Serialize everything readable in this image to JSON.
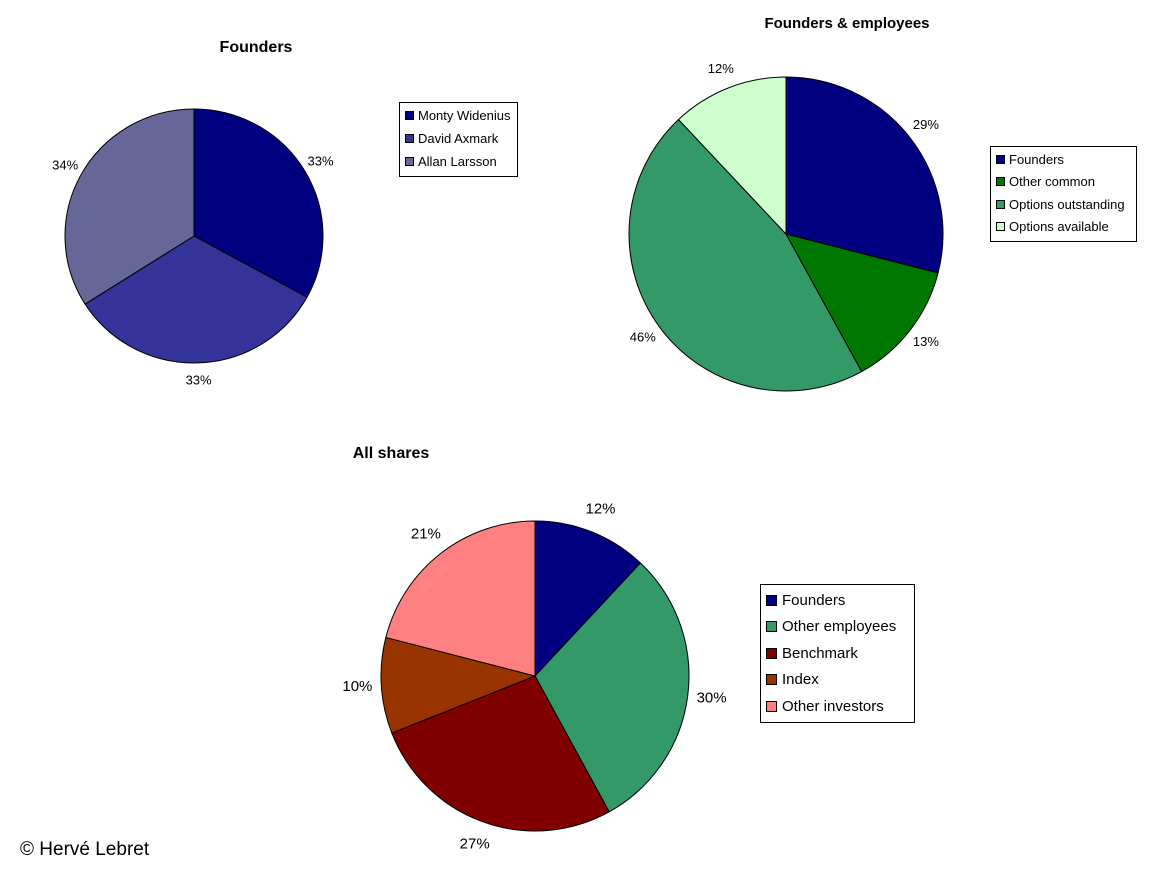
{
  "chart_data": [
    {
      "type": "pie",
      "title": "Founders",
      "start_angle": "12 o'clock, clockwise",
      "legend_position": "right",
      "slices": [
        {
          "label": "Monty Widenius",
          "value": 33,
          "value_label": "33%",
          "color": "#000080"
        },
        {
          "label": "David Axmark",
          "value": 33,
          "value_label": "33%",
          "color": "#333399"
        },
        {
          "label": "Allan Larsson",
          "value": 34,
          "value_label": "34%",
          "color": "#666699"
        }
      ]
    },
    {
      "type": "pie",
      "title": "Founders & employees",
      "start_angle": "12 o'clock, clockwise",
      "legend_position": "right",
      "slices": [
        {
          "label": "Founders",
          "value": 29,
          "value_label": "29%",
          "color": "#000080"
        },
        {
          "label": "Other common",
          "value": 13,
          "value_label": "13%",
          "color": "#007800"
        },
        {
          "label": "Options outstanding",
          "value": 46,
          "value_label": "46%",
          "color": "#339966"
        },
        {
          "label": "Options available",
          "value": 12,
          "value_label": "12%",
          "color": "#CCFFCC"
        }
      ]
    },
    {
      "type": "pie",
      "title": "All shares",
      "start_angle": "12 o'clock, clockwise",
      "legend_position": "right",
      "slices": [
        {
          "label": "Founders",
          "value": 12,
          "value_label": "12%",
          "color": "#000080"
        },
        {
          "label": "Other employees",
          "value": 30,
          "value_label": "30%",
          "color": "#339966"
        },
        {
          "label": "Benchmark",
          "value": 27,
          "value_label": "27%",
          "color": "#800000"
        },
        {
          "label": "Index",
          "value": 10,
          "value_label": "10%",
          "color": "#993300"
        },
        {
          "label": "Other investors",
          "value": 21,
          "value_label": "21%",
          "color": "#FF8080"
        }
      ]
    }
  ],
  "copyright": "© Hervé Lebret"
}
